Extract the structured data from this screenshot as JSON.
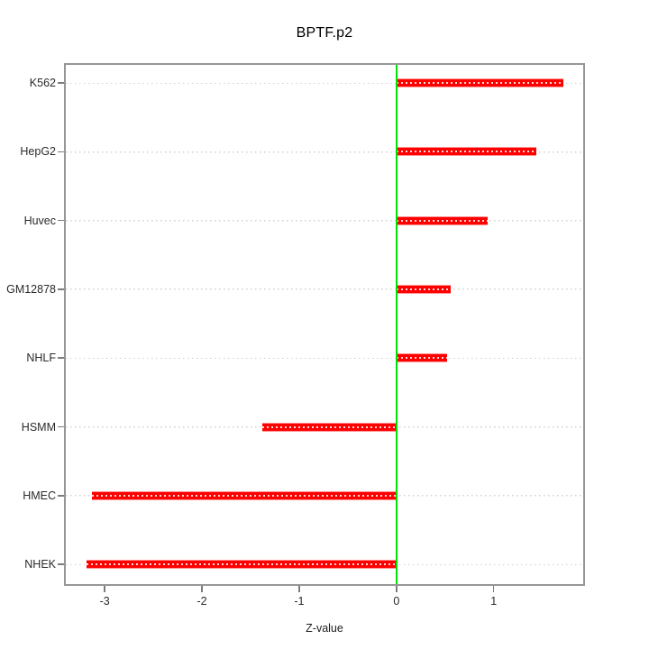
{
  "title": "BPTF.p2",
  "xlabel": "Z-value",
  "colors": {
    "bar_fill": "#ff0000",
    "bar_edge": "#ff9393",
    "bar_dots": "#ffffff",
    "zero_line": "#00e202",
    "gridline": "#d0d0d0",
    "plot_border": "#969696",
    "tick": "#7c7c7c",
    "text": "#000000"
  },
  "chart_data": {
    "type": "bar",
    "orientation": "horizontal",
    "title": "BPTF.p2",
    "xlabel": "Z-value",
    "ylabel": "",
    "categories": [
      "K562",
      "HepG2",
      "Huvec",
      "GM12878",
      "NHLF",
      "HSMM",
      "HMEC",
      "NHEK"
    ],
    "values": [
      1.72,
      1.44,
      0.94,
      0.56,
      0.52,
      -1.38,
      -3.13,
      -3.19
    ],
    "x_ticks": [
      -3,
      -2,
      -1,
      0,
      1
    ],
    "xlim": [
      -3.4,
      1.92
    ],
    "zero_line_x": 0,
    "grid": true,
    "legend": false
  }
}
